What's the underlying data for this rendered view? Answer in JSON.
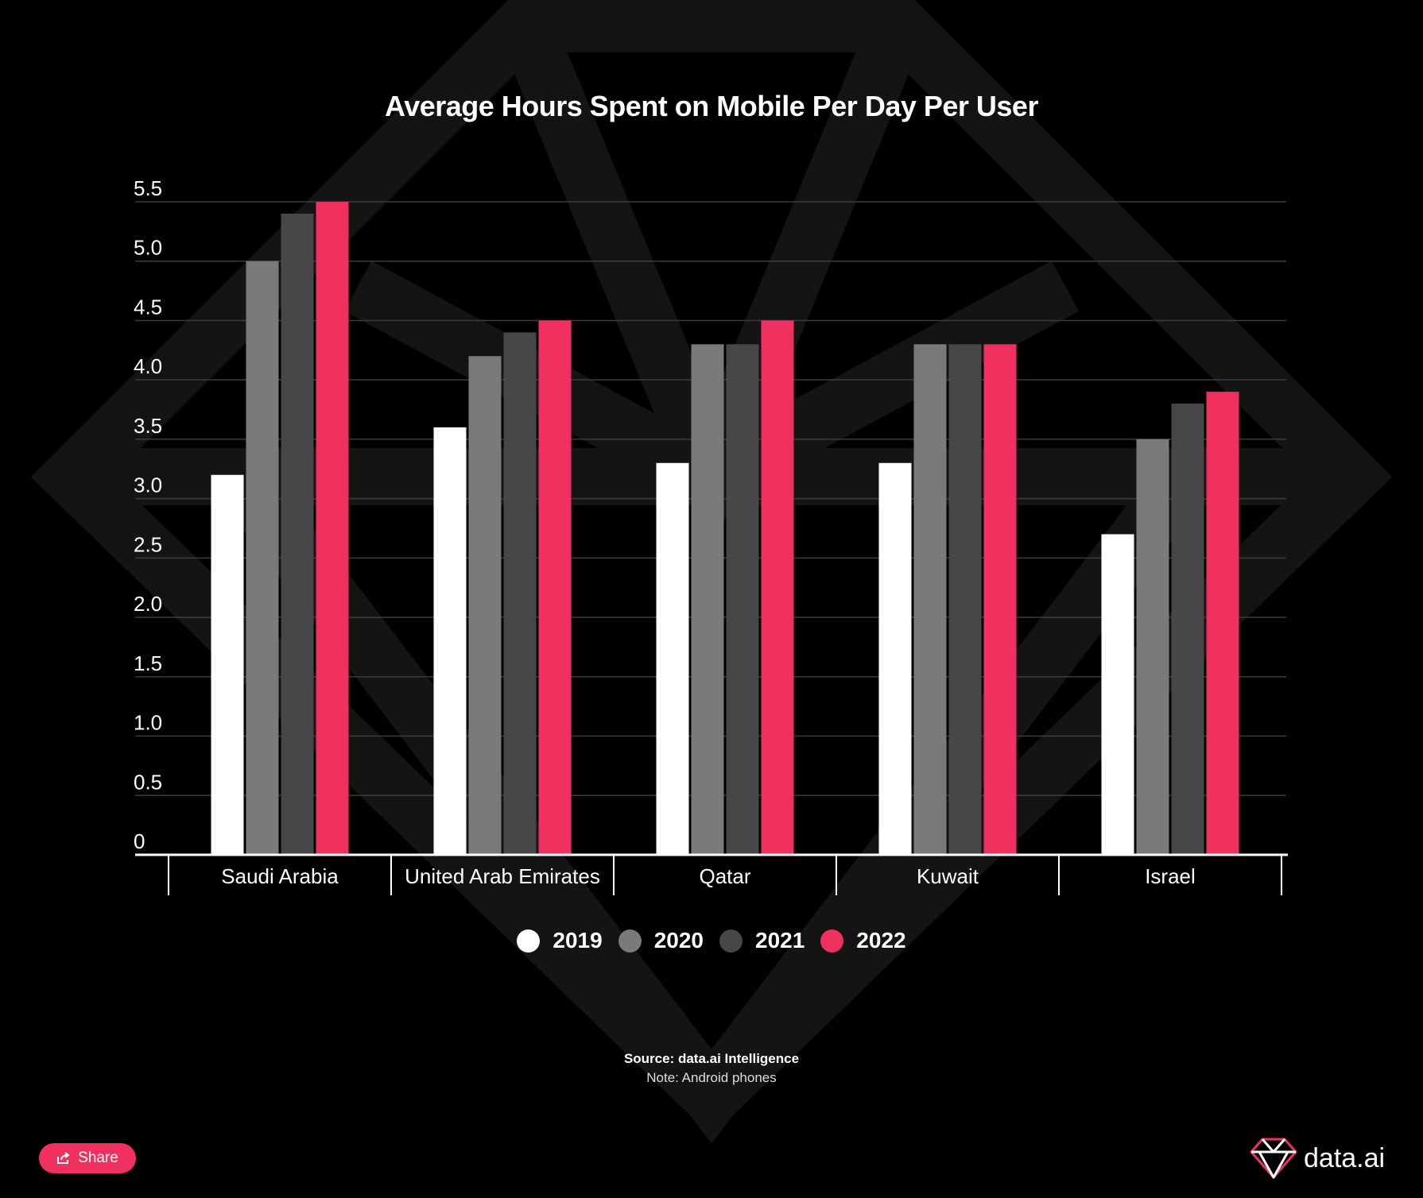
{
  "title": "Average Hours Spent on Mobile Per Day Per User",
  "source": "Source: data.ai Intelligence",
  "note": "Note: Android phones",
  "share_label": "Share",
  "brand": "data.ai",
  "icons": {
    "share": "share-icon",
    "brand": "diamond-logo-icon"
  },
  "colors": {
    "background": "#000000",
    "accent": "#f0315f",
    "2019": "#ffffff",
    "2020": "#7a7a7a",
    "2021": "#474747",
    "2022": "#f0315f"
  },
  "chart_data": {
    "type": "bar",
    "categories": [
      "Saudi Arabia",
      "United Arab Emirates",
      "Qatar",
      "Kuwait",
      "Israel"
    ],
    "series": [
      {
        "name": "2019",
        "color": "#ffffff",
        "values": [
          3.2,
          3.6,
          3.3,
          3.3,
          2.7
        ]
      },
      {
        "name": "2020",
        "color": "#7a7a7a",
        "values": [
          5.0,
          4.2,
          4.3,
          4.3,
          3.5
        ]
      },
      {
        "name": "2021",
        "color": "#474747",
        "values": [
          5.4,
          4.4,
          4.3,
          4.3,
          3.8
        ]
      },
      {
        "name": "2022",
        "color": "#f0315f",
        "values": [
          5.5,
          4.5,
          4.5,
          4.3,
          3.9
        ]
      }
    ],
    "yticks": [
      "0",
      "0.5",
      "1.0",
      "1.5",
      "2.0",
      "2.5",
      "3.0",
      "3.5",
      "4.0",
      "4.5",
      "5.0",
      "5.5"
    ],
    "ylim": [
      0,
      5.5
    ],
    "grid": true,
    "legend_position": "bottom"
  }
}
